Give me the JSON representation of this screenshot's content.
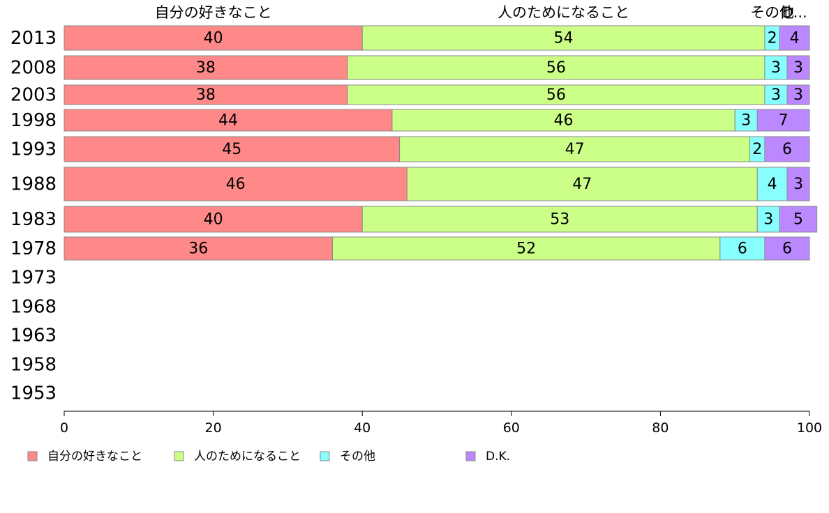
{
  "chart_data": {
    "type": "bar",
    "orientation": "horizontal",
    "stacked": true,
    "categories": [
      "2013",
      "2008",
      "2003",
      "1998",
      "1993",
      "1988",
      "1983",
      "1978",
      "1973",
      "1968",
      "1963",
      "1958",
      "1953"
    ],
    "series": [
      {
        "name": "自分の好きなこと",
        "header": "自分の好きなこと",
        "color": "#ff8888",
        "values": [
          40,
          38,
          38,
          44,
          45,
          46,
          40,
          36,
          null,
          null,
          null,
          null,
          null
        ]
      },
      {
        "name": "人のためになること",
        "header": "人のためになること",
        "color": "#ccff88",
        "values": [
          54,
          56,
          56,
          46,
          47,
          47,
          53,
          52,
          null,
          null,
          null,
          null,
          null
        ]
      },
      {
        "name": "その他",
        "header": "その他",
        "color": "#88ffff",
        "values": [
          2,
          3,
          3,
          3,
          2,
          4,
          3,
          6,
          null,
          null,
          null,
          null,
          null
        ]
      },
      {
        "name": "D.K.",
        "header": "D...",
        "color": "#bb88ff",
        "values": [
          4,
          3,
          3,
          7,
          6,
          3,
          5,
          6,
          null,
          null,
          null,
          null,
          null
        ]
      }
    ],
    "xlim": [
      0,
      100
    ],
    "xticks": [
      0,
      20,
      40,
      60,
      80,
      100
    ],
    "grid": false,
    "legend": "bottom-left",
    "title": "",
    "xlabel": "",
    "ylabel": ""
  }
}
